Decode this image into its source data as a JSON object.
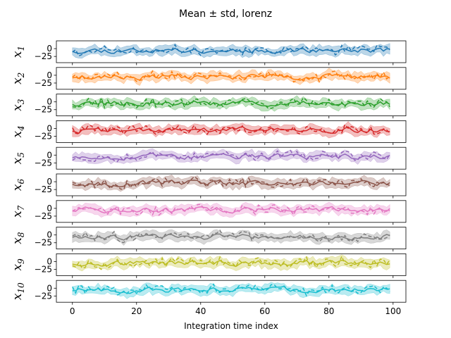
{
  "chart_data": {
    "type": "line",
    "title": "Mean ± std, lorenz",
    "xlabel": "Integration time index",
    "xlim": [
      -5,
      104
    ],
    "xticks": [
      0,
      20,
      40,
      60,
      80,
      100
    ],
    "ylim": [
      -45,
      25
    ],
    "yticks": [
      0,
      -25
    ],
    "grid": false,
    "panels": [
      {
        "ylabel": "x",
        "subscript": "1",
        "color": "#1f77b4",
        "seed": 11
      },
      {
        "ylabel": "x",
        "subscript": "2",
        "color": "#ff7f0e",
        "seed": 23
      },
      {
        "ylabel": "x",
        "subscript": "3",
        "color": "#2ca02c",
        "seed": 37
      },
      {
        "ylabel": "x",
        "subscript": "4",
        "color": "#d62728",
        "seed": 41
      },
      {
        "ylabel": "x",
        "subscript": "5",
        "color": "#9467bd",
        "seed": 53
      },
      {
        "ylabel": "x",
        "subscript": "6",
        "color": "#8c564b",
        "seed": 67
      },
      {
        "ylabel": "x",
        "subscript": "7",
        "color": "#e377c2",
        "seed": 71
      },
      {
        "ylabel": "x",
        "subscript": "8",
        "color": "#7f7f7f",
        "seed": 83
      },
      {
        "ylabel": "x",
        "subscript": "9",
        "color": "#bcbd22",
        "seed": 97
      },
      {
        "ylabel": "x",
        "subscript": "10",
        "color": "#17becf",
        "seed": 101
      }
    ],
    "n_points": 100
  }
}
